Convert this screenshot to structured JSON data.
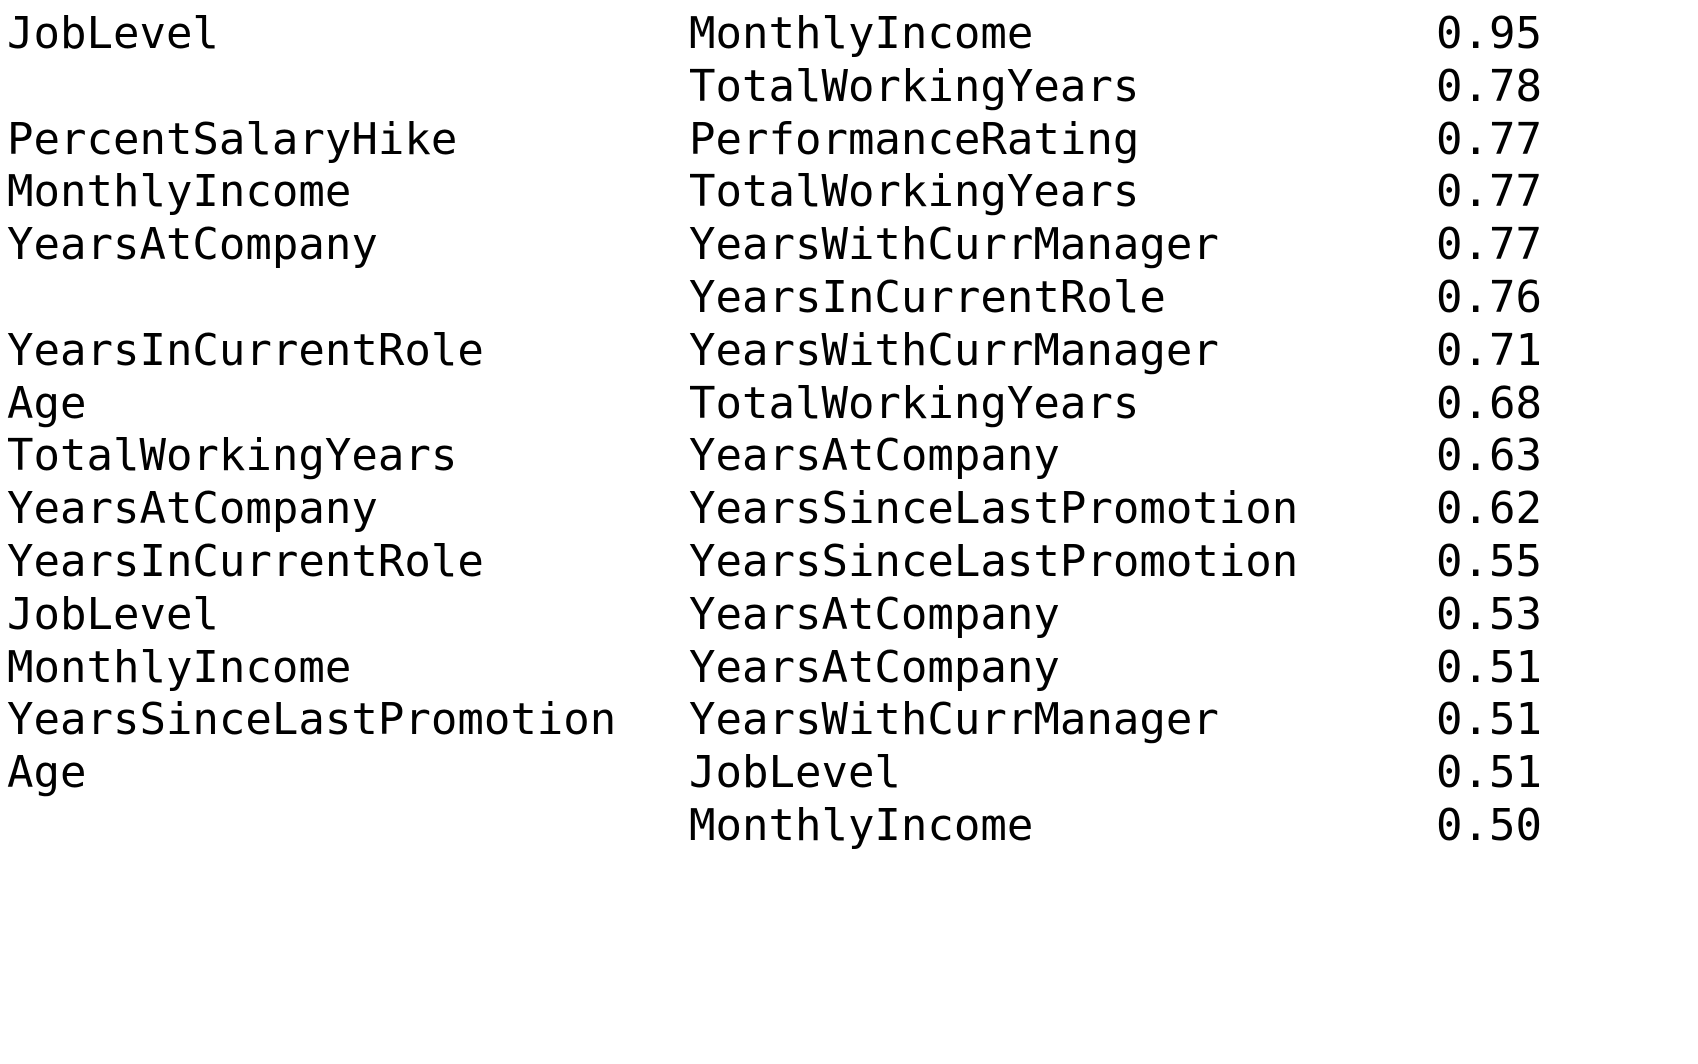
{
  "table": {
    "rows": [
      {
        "var1": "JobLevel",
        "var2": "MonthlyIncome",
        "corr": "0.95"
      },
      {
        "var1": "",
        "var2": "TotalWorkingYears",
        "corr": "0.78"
      },
      {
        "var1": "PercentSalaryHike",
        "var2": "PerformanceRating",
        "corr": "0.77"
      },
      {
        "var1": "MonthlyIncome",
        "var2": "TotalWorkingYears",
        "corr": "0.77"
      },
      {
        "var1": "YearsAtCompany",
        "var2": "YearsWithCurrManager",
        "corr": "0.77"
      },
      {
        "var1": "",
        "var2": "YearsInCurrentRole",
        "corr": "0.76"
      },
      {
        "var1": "YearsInCurrentRole",
        "var2": "YearsWithCurrManager",
        "corr": "0.71"
      },
      {
        "var1": "Age",
        "var2": "TotalWorkingYears",
        "corr": "0.68"
      },
      {
        "var1": "TotalWorkingYears",
        "var2": "YearsAtCompany",
        "corr": "0.63"
      },
      {
        "var1": "YearsAtCompany",
        "var2": "YearsSinceLastPromotion",
        "corr": "0.62"
      },
      {
        "var1": "YearsInCurrentRole",
        "var2": "YearsSinceLastPromotion",
        "corr": "0.55"
      },
      {
        "var1": "JobLevel",
        "var2": "YearsAtCompany",
        "corr": "0.53"
      },
      {
        "var1": "MonthlyIncome",
        "var2": "YearsAtCompany",
        "corr": "0.51"
      },
      {
        "var1": "YearsSinceLastPromotion",
        "var2": "YearsWithCurrManager",
        "corr": "0.51"
      },
      {
        "var1": "Age",
        "var2": "JobLevel",
        "corr": "0.51"
      },
      {
        "var1": "",
        "var2": "MonthlyIncome",
        "corr": "0.50"
      }
    ]
  }
}
